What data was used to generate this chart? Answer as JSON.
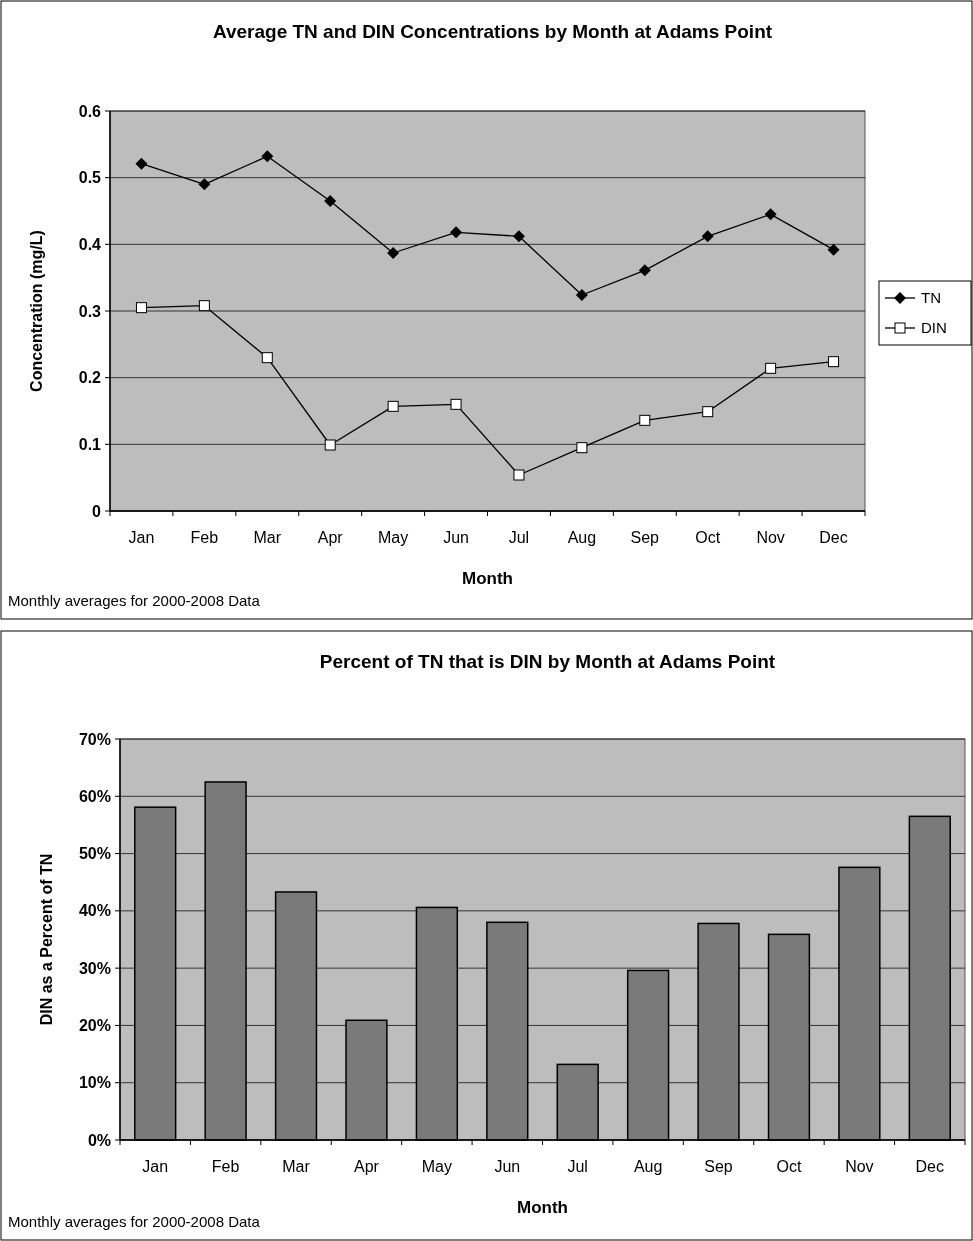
{
  "chart_data": [
    {
      "type": "line",
      "title": "Average TN and DIN Concentrations by Month at Adams Point",
      "xlabel": "Month",
      "ylabel": "Concentration (mg/L)",
      "categories": [
        "Jan",
        "Feb",
        "Mar",
        "Apr",
        "May",
        "Jun",
        "Jul",
        "Aug",
        "Sep",
        "Oct",
        "Nov",
        "Dec"
      ],
      "series": [
        {
          "name": "TN",
          "color": "#000000",
          "marker": "diamond",
          "values": [
            0.521,
            0.49,
            0.532,
            0.465,
            0.387,
            0.418,
            0.412,
            0.324,
            0.361,
            0.412,
            0.445,
            0.392
          ]
        },
        {
          "name": "DIN",
          "color": "#000000",
          "marker": "square",
          "values": [
            0.305,
            0.308,
            0.23,
            0.099,
            0.157,
            0.16,
            0.054,
            0.095,
            0.136,
            0.149,
            0.214,
            0.224
          ]
        }
      ],
      "ylim": [
        0,
        0.6
      ],
      "yticks": [
        0,
        0.1,
        0.2,
        0.3,
        0.4,
        0.5,
        0.6
      ],
      "grid": "y",
      "legend": "right",
      "annotations": [
        "Monthly averages for 2000-2008 Data"
      ]
    },
    {
      "type": "bar",
      "title": "Percent of TN that is DIN by Month at Adams Point",
      "xlabel": "Month",
      "ylabel": "DIN as a Percent of TN",
      "categories": [
        "Jan",
        "Feb",
        "Mar",
        "Apr",
        "May",
        "Jun",
        "Jul",
        "Aug",
        "Sep",
        "Oct",
        "Nov",
        "Dec"
      ],
      "values": [
        58.1,
        62.5,
        43.3,
        20.9,
        40.6,
        38,
        13.2,
        29.6,
        37.8,
        35.9,
        47.6,
        56.5
      ],
      "color": "#7a7a7a",
      "ylim": [
        0,
        70
      ],
      "yticks": [
        {
          "value": 0,
          "label": "0%"
        },
        {
          "value": 10,
          "label": "10%"
        },
        {
          "value": 20,
          "label": "20%"
        },
        {
          "value": 30,
          "label": "30%"
        },
        {
          "value": 40,
          "label": "40%"
        },
        {
          "value": 50,
          "label": "50%"
        },
        {
          "value": 60,
          "label": "60%"
        },
        {
          "value": 70,
          "label": "70%"
        }
      ],
      "grid": "y",
      "annotations": [
        "Monthly averages for 2000-2008 Data"
      ]
    }
  ]
}
